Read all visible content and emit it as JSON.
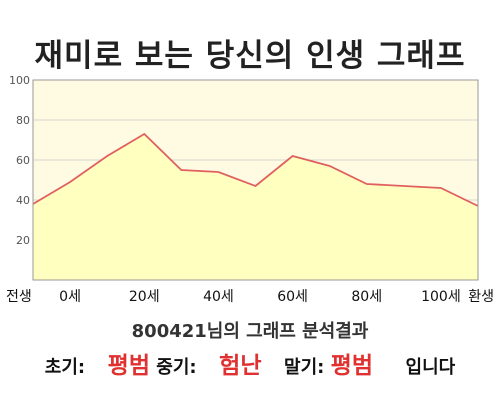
{
  "title": "재미로 보는 당신의 인생 그래프",
  "subtitle": "800421님의 그래프 분석결과",
  "result": {
    "early_label": "초기:",
    "early_value": "평범",
    "middle_label": "중기:",
    "middle_value": "험난",
    "late_label": "말기:",
    "late_value": "평범",
    "suffix": "입니다"
  },
  "colors": {
    "plot_bg": "#fffbe3",
    "area_fill": "#ffffc0",
    "line": "#e06060",
    "grid": "#c8c8c8",
    "accent_text": "#e03030"
  },
  "chart_data": {
    "type": "area",
    "title": "재미로 보는 당신의 인생 그래프",
    "xlabel": "",
    "ylabel": "",
    "x_tick_labels": [
      "전생",
      "0세",
      "20세",
      "40세",
      "60세",
      "80세",
      "100세",
      "환생"
    ],
    "y_tick_labels": [
      "20",
      "40",
      "60",
      "80",
      "100"
    ],
    "ylim": [
      0,
      100
    ],
    "grid": true,
    "x": [
      "전생",
      "0세",
      "10세",
      "20세",
      "30세",
      "40세",
      "50세",
      "60세",
      "70세",
      "80세",
      "90세",
      "100세",
      "환생"
    ],
    "series": [
      {
        "values": [
          38,
          49,
          62,
          73,
          55,
          54,
          47,
          62,
          57,
          48,
          47,
          46,
          37
        ]
      }
    ]
  }
}
